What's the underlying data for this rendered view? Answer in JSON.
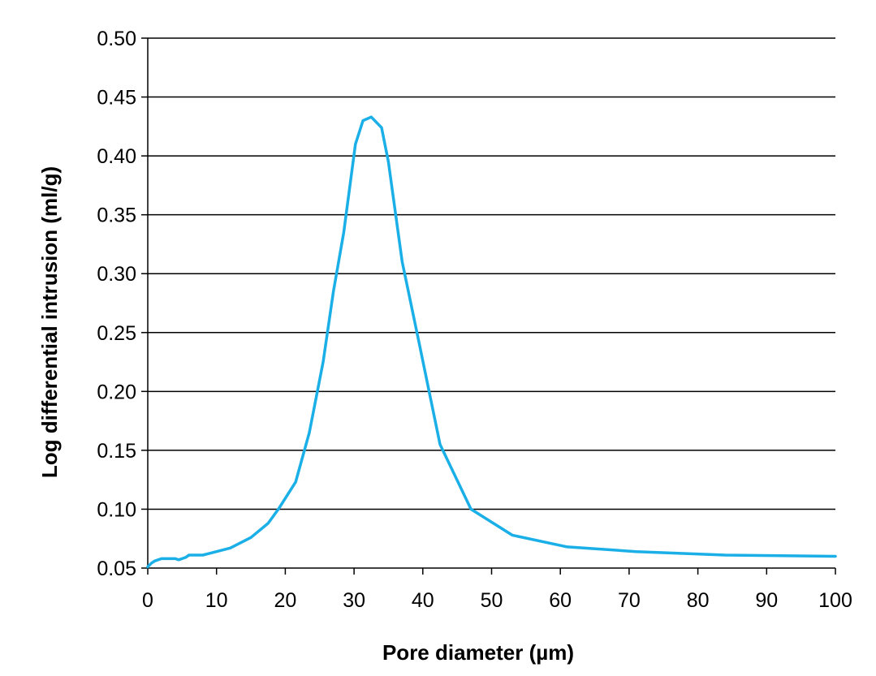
{
  "chart_data": {
    "type": "line",
    "title": "",
    "xlabel": "Pore diameter (µm)",
    "ylabel": "Log differential intrusion (ml/g)",
    "xlim": [
      0,
      100
    ],
    "ylim": [
      0.05,
      0.5
    ],
    "x_ticks": [
      0,
      10,
      20,
      30,
      40,
      50,
      60,
      70,
      80,
      90,
      100
    ],
    "x_tick_labels": [
      "0",
      "10",
      "20",
      "30",
      "40",
      "50",
      "60",
      "70",
      "80",
      "90",
      "100"
    ],
    "y_ticks": [
      0.05,
      0.1,
      0.15,
      0.2,
      0.25,
      0.3,
      0.35,
      0.4,
      0.45,
      0.5
    ],
    "y_tick_labels": [
      "0.05",
      "0.10",
      "0.15",
      "0.20",
      "0.25",
      "0.30",
      "0.35",
      "0.40",
      "0.45",
      "0.50"
    ],
    "grid": "horizontal",
    "legend": "none",
    "series": [
      {
        "color": "#1aafe6",
        "x": [
          0,
          0.5,
          1,
          2,
          3,
          4,
          4.5,
          5,
          5.5,
          6,
          8,
          10,
          12,
          15,
          17.5,
          19,
          21.5,
          23.5,
          25.5,
          27,
          28.5,
          30.2,
          31.3,
          32.5,
          34,
          35,
          37,
          39.5,
          42.5,
          47,
          53,
          61,
          71,
          84,
          100
        ],
        "y": [
          0.051,
          0.054,
          0.056,
          0.058,
          0.058,
          0.058,
          0.057,
          0.058,
          0.059,
          0.061,
          0.061,
          0.064,
          0.067,
          0.076,
          0.088,
          0.1,
          0.123,
          0.165,
          0.225,
          0.285,
          0.335,
          0.41,
          0.43,
          0.433,
          0.424,
          0.395,
          0.31,
          0.24,
          0.155,
          0.1,
          0.078,
          0.068,
          0.064,
          0.061,
          0.06
        ]
      }
    ]
  }
}
